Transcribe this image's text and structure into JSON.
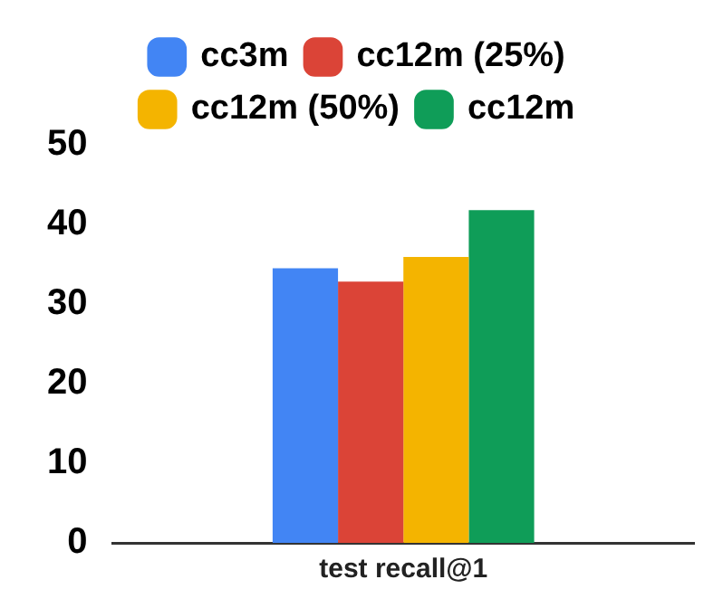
{
  "chart_data": {
    "type": "bar",
    "xlabel": "test recall@1",
    "categories": [
      null
    ],
    "series": [
      {
        "name": "cc3m",
        "color": "#4285f4",
        "values": [
          34.5
        ]
      },
      {
        "name": "cc12m (25%)",
        "color": "#db4437",
        "values": [
          32.8
        ]
      },
      {
        "name": "cc12m (50%)",
        "color": "#f4b400",
        "values": [
          35.9
        ]
      },
      {
        "name": "cc12m",
        "color": "#0f9d58",
        "values": [
          41.8
        ]
      }
    ],
    "ylim": [
      0,
      50
    ],
    "yticks": [
      0,
      10,
      20,
      30,
      40,
      50
    ],
    "grid": false,
    "legend": "top"
  }
}
